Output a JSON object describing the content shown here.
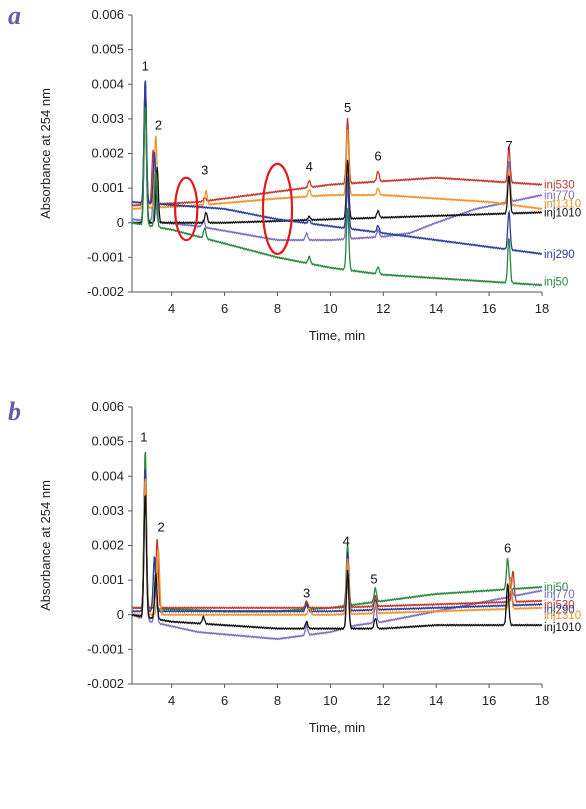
{
  "chart_data": [
    {
      "panel": "a",
      "type": "line",
      "xlabel": "Time, min",
      "ylabel": "Absorbance at 254 nm",
      "xlim": [
        2.5,
        18
      ],
      "ylim": [
        -0.002,
        0.006
      ],
      "xticks": [
        "4",
        "6",
        "8",
        "10",
        "12",
        "14",
        "16",
        "18"
      ],
      "yticks": [
        "0.006",
        "0.005",
        "0.004",
        "0.003",
        "0.002",
        "0.001",
        "0",
        "-0.001",
        "-0.002"
      ],
      "peak_labels": [
        {
          "text": "1",
          "x": 3.0,
          "y": 0.0044
        },
        {
          "text": "2",
          "x": 3.5,
          "y": 0.0027
        },
        {
          "text": "3",
          "x": 5.25,
          "y": 0.0014
        },
        {
          "text": "4",
          "x": 9.2,
          "y": 0.0015
        },
        {
          "text": "5",
          "x": 10.65,
          "y": 0.0032
        },
        {
          "text": "6",
          "x": 11.8,
          "y": 0.0018
        },
        {
          "text": "7",
          "x": 16.75,
          "y": 0.0021
        }
      ],
      "highlights": [
        {
          "x_center": 4.55,
          "y_center": 0.0004,
          "x_half": 0.42,
          "y_half": 0.0009
        },
        {
          "x_center": 8.0,
          "y_center": 0.0004,
          "x_half": 0.55,
          "y_half": 0.0013
        }
      ],
      "series": [
        {
          "name": "inj530",
          "color": "#c0392b",
          "baseline": [
            [
              2.5,
              0.0005
            ],
            [
              5,
              0.0006
            ],
            [
              8,
              0.0009
            ],
            [
              10,
              0.0011
            ],
            [
              12,
              0.0012
            ],
            [
              14,
              0.0013
            ],
            [
              16,
              0.0012
            ],
            [
              18,
              0.0011
            ]
          ],
          "peaks": [
            [
              3.0,
              0.0036
            ],
            [
              3.3,
              0.0016
            ],
            [
              5.25,
              0.0001
            ],
            [
              9.2,
              0.0002
            ],
            [
              10.65,
              0.0019
            ],
            [
              11.8,
              0.0003
            ],
            [
              16.75,
              0.001
            ]
          ]
        },
        {
          "name": "inj770",
          "color": "#7a6fc0",
          "baseline": [
            [
              2.5,
              0.0001
            ],
            [
              5,
              -0.0001
            ],
            [
              8,
              -0.0005
            ],
            [
              10,
              -0.0005
            ],
            [
              12,
              -0.0004
            ],
            [
              13,
              -0.0003
            ],
            [
              14,
              0.0
            ],
            [
              15.5,
              0.0004
            ],
            [
              18,
              0.0008
            ]
          ],
          "peaks": [
            [
              3.0,
              0.004
            ],
            [
              3.35,
              0.002
            ],
            [
              5.2,
              0.0002
            ],
            [
              9.1,
              0.0002
            ],
            [
              10.65,
              0.0015
            ],
            [
              11.8,
              0.0002
            ],
            [
              16.75,
              0.0012
            ]
          ]
        },
        {
          "name": "inj1310",
          "color": "#f0932b",
          "baseline": [
            [
              2.5,
              0.0004
            ],
            [
              5,
              0.0005
            ],
            [
              8,
              0.0007
            ],
            [
              10,
              0.0008
            ],
            [
              12,
              0.0008
            ],
            [
              14,
              0.0007
            ],
            [
              16,
              0.0006
            ],
            [
              18,
              0.0004
            ]
          ],
          "peaks": [
            [
              3.0,
              0.0036
            ],
            [
              3.4,
              0.0021
            ],
            [
              5.3,
              0.0004
            ],
            [
              9.2,
              0.0002
            ],
            [
              10.65,
              0.0019
            ],
            [
              11.8,
              0.0002
            ],
            [
              16.75,
              0.001
            ]
          ]
        },
        {
          "name": "inj1010",
          "color": "#111111",
          "baseline": [
            [
              2.5,
              0.0
            ],
            [
              6,
              0.0
            ],
            [
              10,
              0.0001
            ],
            [
              14,
              0.0002
            ],
            [
              18,
              0.0003
            ]
          ],
          "peaks": [
            [
              3.0,
              0.0038
            ],
            [
              3.45,
              0.0016
            ],
            [
              5.3,
              0.0003
            ],
            [
              9.2,
              0.0001
            ],
            [
              10.65,
              0.0017
            ],
            [
              11.8,
              0.0002
            ],
            [
              16.75,
              0.0011
            ]
          ]
        },
        {
          "name": "inj290",
          "color": "#2c3e9e",
          "baseline": [
            [
              2.5,
              0.0006
            ],
            [
              6,
              0.0004
            ],
            [
              8,
              0.0001
            ],
            [
              10,
              -0.0001
            ],
            [
              12,
              -0.0003
            ],
            [
              14,
              -0.0005
            ],
            [
              16,
              -0.0007
            ],
            [
              18,
              -0.0009
            ]
          ],
          "peaks": [
            [
              3.0,
              0.0036
            ],
            [
              3.35,
              0.0015
            ],
            [
              9.2,
              0.0001
            ],
            [
              10.65,
              0.0015
            ],
            [
              11.8,
              0.0002
            ],
            [
              16.75,
              0.0011
            ]
          ]
        },
        {
          "name": "inj50",
          "color": "#27883f",
          "baseline": [
            [
              2.5,
              0.0
            ],
            [
              4,
              -0.0002
            ],
            [
              6,
              -0.0006
            ],
            [
              8,
              -0.001
            ],
            [
              10,
              -0.0013
            ],
            [
              12,
              -0.0015
            ],
            [
              14,
              -0.0016
            ],
            [
              16,
              -0.0017
            ],
            [
              18,
              -0.0018
            ]
          ],
          "peaks": [
            [
              3.0,
              0.0035
            ],
            [
              3.4,
              0.0016
            ],
            [
              5.25,
              0.0003
            ],
            [
              9.2,
              0.0002
            ],
            [
              10.65,
              0.0018
            ],
            [
              11.8,
              0.0002
            ],
            [
              16.75,
              0.0013
            ]
          ]
        }
      ],
      "legend_order_y": [
        0.0011,
        0.0008,
        0.00055,
        0.0003,
        -0.0009,
        -0.0017
      ]
    },
    {
      "panel": "b",
      "type": "line",
      "xlabel": "Time, min",
      "ylabel": "Absorbance at 254 nm",
      "xlim": [
        2.5,
        18
      ],
      "ylim": [
        -0.002,
        0.006
      ],
      "xticks": [
        "4",
        "6",
        "8",
        "10",
        "12",
        "14",
        "16",
        "18"
      ],
      "yticks": [
        "0.006",
        "0.005",
        "0.004",
        "0.003",
        "0.002",
        "0.001",
        "0",
        "-0.001",
        "-0.002"
      ],
      "peak_labels": [
        {
          "text": "1",
          "x": 2.95,
          "y": 0.005
        },
        {
          "text": "2",
          "x": 3.6,
          "y": 0.0024
        },
        {
          "text": "3",
          "x": 9.1,
          "y": 0.0005
        },
        {
          "text": "4",
          "x": 10.6,
          "y": 0.002
        },
        {
          "text": "5",
          "x": 11.65,
          "y": 0.0009
        },
        {
          "text": "6",
          "x": 16.7,
          "y": 0.0018
        }
      ],
      "highlights": [],
      "series": [
        {
          "name": "inj50",
          "color": "#27883f",
          "baseline": [
            [
              2.5,
              0.0002
            ],
            [
              6,
              0.0001
            ],
            [
              8,
              0.0001
            ],
            [
              10,
              0.0002
            ],
            [
              12,
              0.0004
            ],
            [
              14,
              0.0006
            ],
            [
              16,
              0.0007
            ],
            [
              18,
              0.0008
            ]
          ],
          "peaks": [
            [
              3.0,
              0.0046
            ],
            [
              3.35,
              0.0015
            ],
            [
              9.1,
              0.0002
            ],
            [
              10.65,
              0.0018
            ],
            [
              11.7,
              0.0004
            ],
            [
              16.7,
              0.0009
            ]
          ]
        },
        {
          "name": "inj770",
          "color": "#7a6fc0",
          "baseline": [
            [
              2.5,
              0.0
            ],
            [
              3.2,
              -0.0002
            ],
            [
              5,
              -0.0005
            ],
            [
              8,
              -0.0007
            ],
            [
              10,
              -0.0005
            ],
            [
              11,
              -0.0003
            ],
            [
              12,
              -0.0002
            ],
            [
              14,
              0.0001
            ],
            [
              16,
              0.0004
            ],
            [
              18,
              0.0007
            ]
          ],
          "peaks": [
            [
              3.0,
              0.0038
            ],
            [
              3.4,
              0.0014
            ],
            [
              9.1,
              0.0003
            ],
            [
              10.65,
              0.0014
            ],
            [
              11.7,
              0.0005
            ],
            [
              16.85,
              0.0002
            ]
          ]
        },
        {
          "name": "inj530",
          "color": "#c0392b",
          "baseline": [
            [
              2.5,
              0.0002
            ],
            [
              6,
              0.0002
            ],
            [
              10,
              0.0002
            ],
            [
              14,
              0.0003
            ],
            [
              18,
              0.0004
            ]
          ],
          "peaks": [
            [
              3.0,
              0.004
            ],
            [
              3.45,
              0.002
            ],
            [
              9.1,
              0.0002
            ],
            [
              10.65,
              0.0016
            ],
            [
              11.7,
              0.0003
            ],
            [
              16.9,
              0.0009
            ]
          ]
        },
        {
          "name": "inj290",
          "color": "#2c3e9e",
          "baseline": [
            [
              2.5,
              0.0001
            ],
            [
              6,
              0.0001
            ],
            [
              10,
              0.0001
            ],
            [
              14,
              0.0002
            ],
            [
              18,
              0.0003
            ]
          ],
          "peaks": [
            [
              3.0,
              0.0042
            ],
            [
              3.35,
              0.0016
            ],
            [
              9.1,
              0.0002
            ],
            [
              10.65,
              0.0017
            ],
            [
              11.7,
              0.0003
            ],
            [
              16.8,
              0.0008
            ]
          ]
        },
        {
          "name": "inj1310",
          "color": "#f0932b",
          "baseline": [
            [
              2.5,
              0.0
            ],
            [
              6,
              0.0
            ],
            [
              10,
              0.0
            ],
            [
              14,
              0.0001
            ],
            [
              18,
              0.0002
            ]
          ],
          "peaks": [
            [
              3.0,
              0.004
            ],
            [
              3.5,
              0.0019
            ],
            [
              9.2,
              0.0002
            ],
            [
              10.65,
              0.0016
            ],
            [
              11.7,
              0.0003
            ],
            [
              16.8,
              0.0009
            ]
          ]
        },
        {
          "name": "inj1010",
          "color": "#111111",
          "baseline": [
            [
              2.5,
              0.0
            ],
            [
              4,
              -0.0002
            ],
            [
              6,
              -0.0003
            ],
            [
              8,
              -0.0004
            ],
            [
              10,
              -0.0004
            ],
            [
              12,
              -0.0004
            ],
            [
              14,
              -0.0003
            ],
            [
              18,
              -0.0003
            ]
          ],
          "peaks": [
            [
              3.0,
              0.0036
            ],
            [
              3.4,
              0.0013
            ],
            [
              5.2,
              0.0002
            ],
            [
              9.1,
              0.0002
            ],
            [
              10.65,
              0.0017
            ],
            [
              11.7,
              0.0003
            ],
            [
              16.7,
              0.0012
            ]
          ]
        }
      ],
      "legend_order_y": [
        0.0008,
        0.0006,
        0.0003,
        0.00015,
        0.0,
        -0.00035
      ]
    }
  ]
}
